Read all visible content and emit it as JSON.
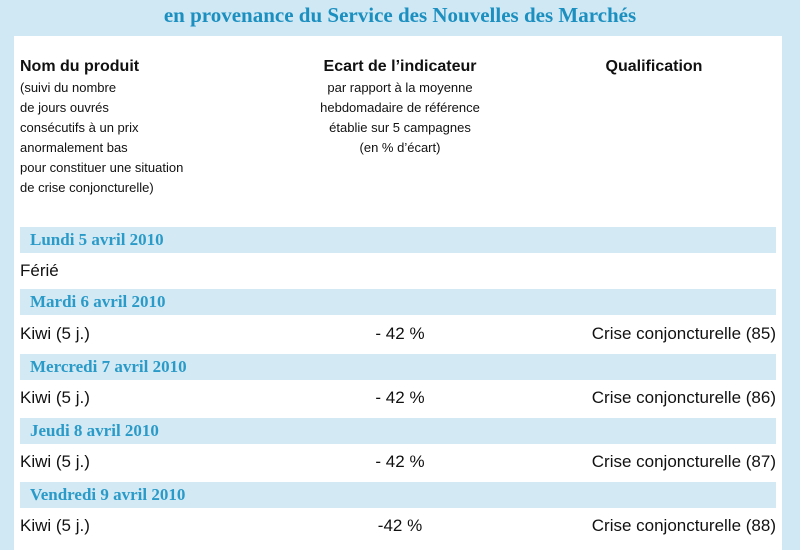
{
  "title": "en provenance du Service des Nouvelles des Marchés",
  "headers": {
    "col1_title": "Nom du produit",
    "col1_sub": [
      "(suivi du nombre",
      "de jours ouvrés",
      "consécutifs à un prix",
      "anormalement bas",
      "pour constituer une situation",
      "de crise conjoncturelle)"
    ],
    "col2_title": "Ecart de l’indicateur",
    "col2_sub": [
      "par rapport à la moyenne",
      "hebdomadaire de référence",
      "établie sur 5 campagnes",
      "(en % d’écart)"
    ],
    "col3_title": "Qualification"
  },
  "sections": [
    {
      "date": "Lundi 5 avril 2010",
      "rows": [
        {
          "product": "Férié",
          "ecart": "",
          "qualification": ""
        }
      ]
    },
    {
      "date": "Mardi 6 avril 2010",
      "rows": [
        {
          "product": "Kiwi (5 j.)",
          "ecart": "- 42 %",
          "qualification": "Crise conjoncturelle (85)"
        }
      ]
    },
    {
      "date": "Mercredi 7 avril 2010",
      "rows": [
        {
          "product": "Kiwi (5 j.)",
          "ecart": "- 42 %",
          "qualification": "Crise conjoncturelle (86)"
        }
      ]
    },
    {
      "date": "Jeudi 8 avril 2010",
      "rows": [
        {
          "product": "Kiwi (5 j.)",
          "ecart": "- 42 %",
          "qualification": "Crise conjoncturelle (87)"
        }
      ]
    },
    {
      "date": "Vendredi 9 avril 2010",
      "rows": [
        {
          "product": "Kiwi (5 j.)",
          "ecart": "-42 %",
          "qualification": "Crise conjoncturelle (88)"
        }
      ]
    }
  ]
}
